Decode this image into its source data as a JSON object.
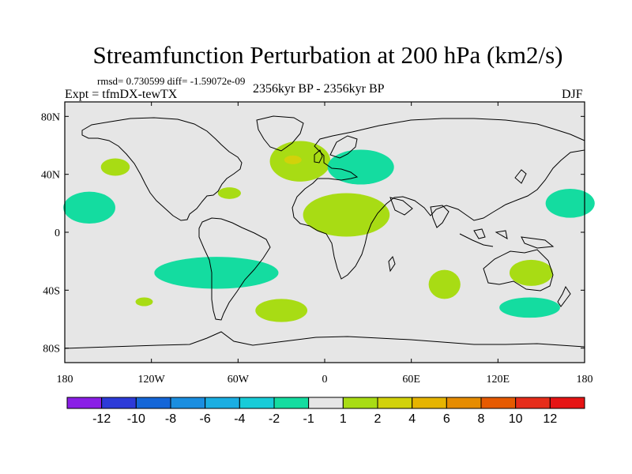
{
  "chart_data": {
    "type": "map-contour",
    "title": "Streamfunction Perturbation at 200 hPa (km2/s)",
    "stats_text": "rmsd= 0.730599 diff= -1.59072e-09",
    "experiment_label": "Expt = tfmDX-tewTX",
    "period_label": "2356kyr BP - 2356kyr BP",
    "season_label": "DJF",
    "x_ticks": [
      "180",
      "120W",
      "60W",
      "0",
      "60E",
      "120E",
      "180"
    ],
    "x_values": [
      -180,
      -120,
      -60,
      0,
      60,
      120,
      180
    ],
    "y_ticks": [
      "80N",
      "40N",
      "0",
      "40S",
      "80S"
    ],
    "y_values": [
      80,
      40,
      0,
      -40,
      -80
    ],
    "xlim": [
      -180,
      180
    ],
    "ylim": [
      -90,
      90
    ],
    "colorbar": {
      "levels": [
        "-12",
        "-10",
        "-8",
        "-6",
        "-4",
        "-2",
        "-1",
        "1",
        "2",
        "4",
        "6",
        "8",
        "10",
        "12"
      ],
      "colors": [
        "#8a1ee6",
        "#2d3ad8",
        "#1466d8",
        "#1a8ee0",
        "#1aaee2",
        "#18ccd8",
        "#14dca0",
        "#e6e6e6",
        "#a8dc14",
        "#d2d20a",
        "#e6b400",
        "#e68c00",
        "#e65a00",
        "#e62d1a",
        "#e61414"
      ]
    },
    "anomalies": [
      {
        "name": "n-pacific-west",
        "lon": -145,
        "lat": 45,
        "rlon": 10,
        "rlat": 6,
        "bin": 8
      },
      {
        "name": "trop-east-pacific",
        "lon": -163,
        "lat": 17,
        "rlon": 18,
        "rlat": 11,
        "bin": 6
      },
      {
        "name": "caribbean",
        "lon": -66,
        "lat": 27,
        "rlon": 8,
        "rlat": 4,
        "bin": 8
      },
      {
        "name": "n-atlantic",
        "lon": -17,
        "lat": 49,
        "rlon": 21,
        "rlat": 14,
        "bin": 8
      },
      {
        "name": "n-atlantic-core",
        "lon": -22,
        "lat": 50,
        "rlon": 6,
        "rlat": 3,
        "bin": 9
      },
      {
        "name": "europe",
        "lon": 25,
        "lat": 45,
        "rlon": 23,
        "rlat": 12,
        "bin": 6
      },
      {
        "name": "africa-tropics",
        "lon": 15,
        "lat": 12,
        "rlon": 30,
        "rlat": 15,
        "bin": 8
      },
      {
        "name": "s-america-atlantic",
        "lon": -75,
        "lat": -28,
        "rlon": 43,
        "rlat": 11,
        "bin": 6
      },
      {
        "name": "s-pacific-small",
        "lon": -125,
        "lat": -48,
        "rlon": 6,
        "rlat": 3,
        "bin": 8
      },
      {
        "name": "s-atlantic",
        "lon": -30,
        "lat": -54,
        "rlon": 18,
        "rlat": 8,
        "bin": 8
      },
      {
        "name": "indian-ocean",
        "lon": 83,
        "lat": -36,
        "rlon": 11,
        "rlat": 10,
        "bin": 8
      },
      {
        "name": "australia",
        "lon": 143,
        "lat": -28,
        "rlon": 15,
        "rlat": 9,
        "bin": 8
      },
      {
        "name": "s-of-australia",
        "lon": 142,
        "lat": -52,
        "rlon": 21,
        "rlat": 7,
        "bin": 6
      },
      {
        "name": "w-pacific",
        "lon": 170,
        "lat": 20,
        "rlon": 17,
        "rlat": 10,
        "bin": 6
      }
    ]
  }
}
